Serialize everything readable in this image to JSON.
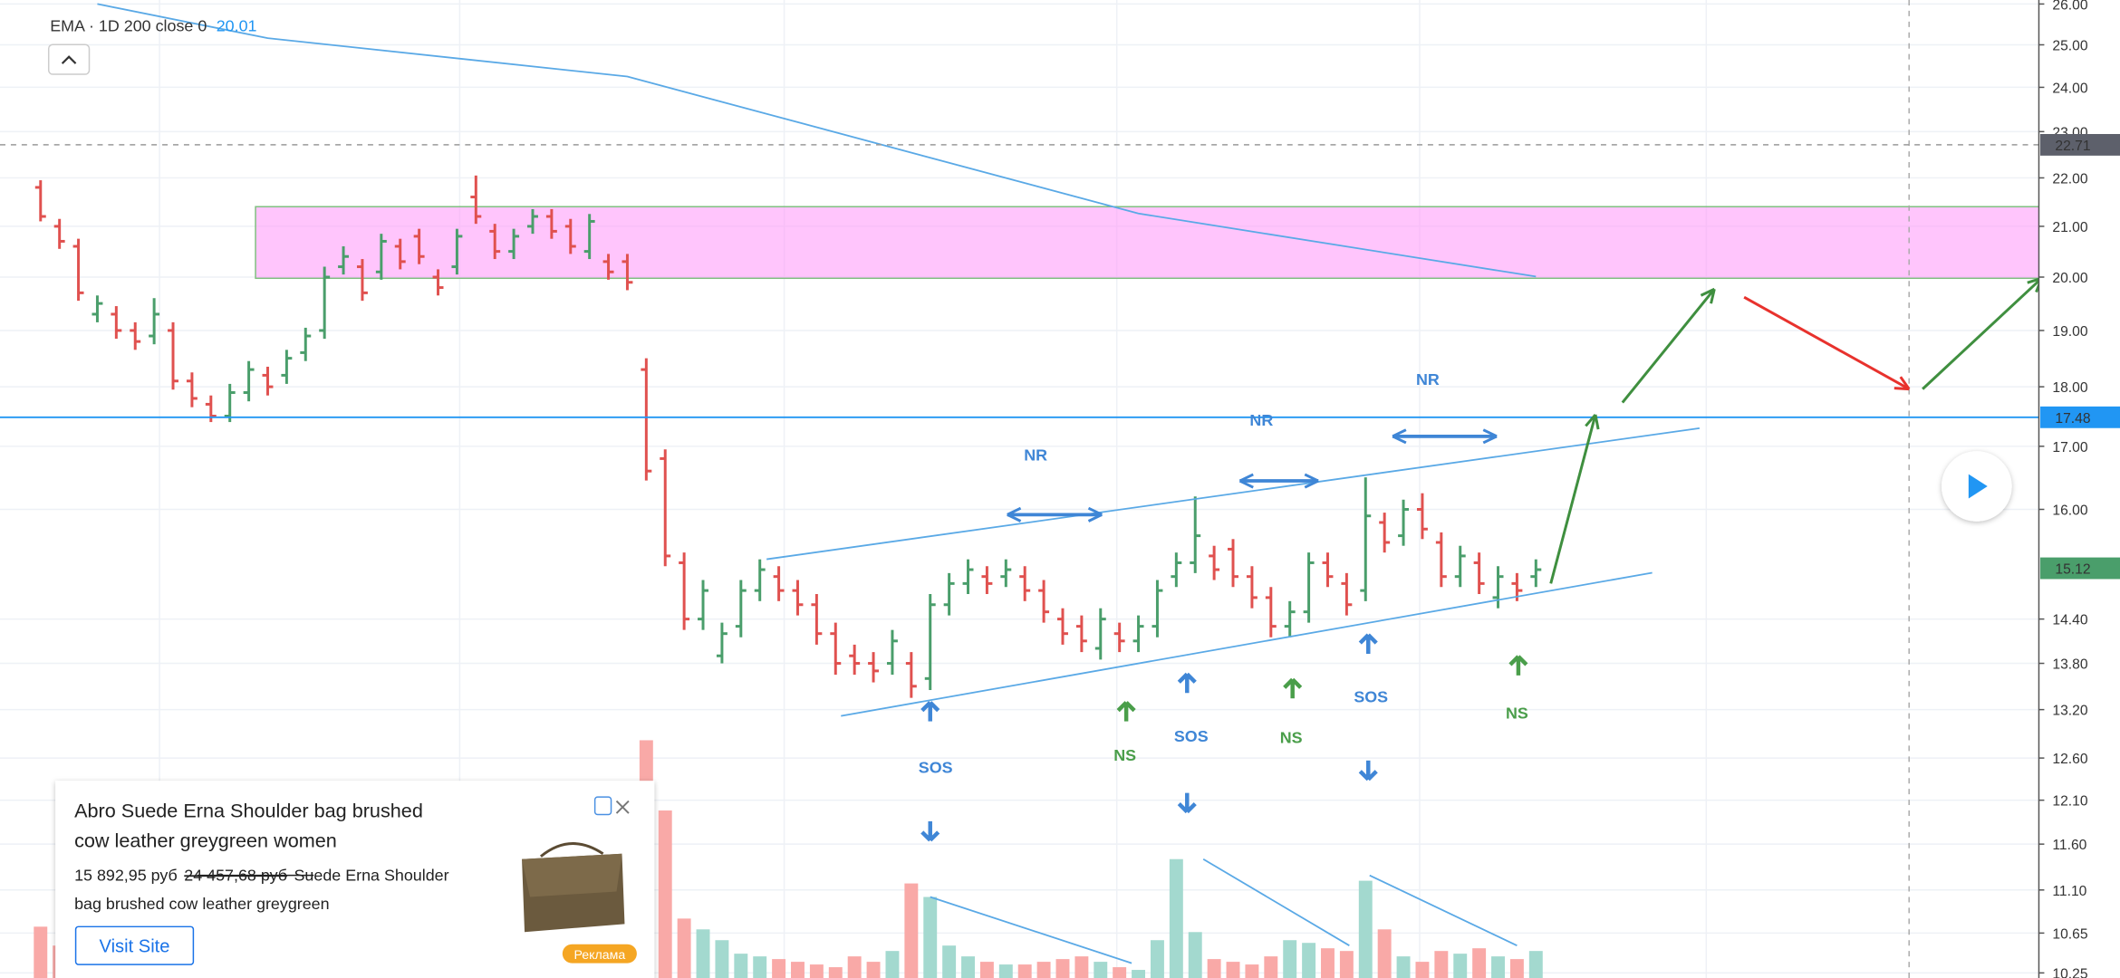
{
  "chart_data": {
    "type": "ohlc",
    "log_scale": true,
    "grid": true,
    "ylim": [
      10.2,
      26.1
    ],
    "yticks": [
      {
        "value": 26,
        "label": "26.00"
      },
      {
        "value": 25,
        "label": "25.00"
      },
      {
        "value": 24,
        "label": "24.00"
      },
      {
        "value": 23,
        "label": "23.00"
      },
      {
        "value": 22,
        "label": "22.00"
      },
      {
        "value": 21,
        "label": "21.00"
      },
      {
        "value": 20,
        "label": "20.00"
      },
      {
        "value": 19,
        "label": "19.00"
      },
      {
        "value": 18,
        "label": "18.00"
      },
      {
        "value": 17,
        "label": "17.00"
      },
      {
        "value": 16,
        "label": "16.00"
      },
      {
        "value": 14.4,
        "label": "14.40"
      },
      {
        "value": 13.8,
        "label": "13.80"
      },
      {
        "value": 13.2,
        "label": "13.20"
      },
      {
        "value": 12.6,
        "label": "12.60"
      },
      {
        "value": 12.1,
        "label": "12.10"
      },
      {
        "value": 11.6,
        "label": "11.60"
      },
      {
        "value": 11.1,
        "label": "11.10"
      },
      {
        "value": 10.65,
        "label": "10.65"
      },
      {
        "value": 10.25,
        "label": "10.25"
      }
    ],
    "up_color": "#4a9e6b",
    "down_color": "#e0514f",
    "volume_up_color": "#a3d9cf",
    "volume_down_color": "#f9a9a7",
    "ohlc": [
      [
        21.8,
        21.95,
        21.1,
        21.2
      ],
      [
        21.0,
        21.15,
        20.55,
        20.7
      ],
      [
        20.6,
        20.75,
        19.55,
        19.7
      ],
      [
        19.3,
        19.65,
        19.15,
        19.5
      ],
      [
        19.3,
        19.45,
        18.85,
        19.0
      ],
      [
        19.0,
        19.15,
        18.65,
        18.8
      ],
      [
        18.9,
        19.6,
        18.75,
        19.3
      ],
      [
        19.0,
        19.15,
        17.95,
        18.1
      ],
      [
        18.1,
        18.25,
        17.65,
        17.8
      ],
      [
        17.7,
        17.85,
        17.4,
        17.5
      ],
      [
        17.5,
        18.05,
        17.4,
        17.9
      ],
      [
        17.9,
        18.45,
        17.75,
        18.3
      ],
      [
        18.2,
        18.35,
        17.85,
        18.0
      ],
      [
        18.2,
        18.65,
        18.05,
        18.5
      ],
      [
        18.6,
        19.05,
        18.45,
        18.9
      ],
      [
        19.0,
        20.2,
        18.85,
        20.0
      ],
      [
        20.2,
        20.6,
        20.05,
        20.4
      ],
      [
        20.2,
        20.35,
        19.55,
        19.7
      ],
      [
        20.1,
        20.85,
        19.95,
        20.7
      ],
      [
        20.6,
        20.75,
        20.15,
        20.3
      ],
      [
        20.8,
        20.95,
        20.25,
        20.4
      ],
      [
        20.0,
        20.15,
        19.65,
        19.8
      ],
      [
        20.2,
        20.95,
        20.05,
        20.8
      ],
      [
        21.6,
        22.05,
        21.05,
        21.2
      ],
      [
        20.9,
        21.05,
        20.35,
        20.5
      ],
      [
        20.5,
        20.95,
        20.35,
        20.8
      ],
      [
        21.0,
        21.35,
        20.85,
        21.2
      ],
      [
        21.2,
        21.35,
        20.75,
        20.9
      ],
      [
        21.0,
        21.15,
        20.45,
        20.6
      ],
      [
        20.5,
        21.25,
        20.35,
        21.1
      ],
      [
        20.3,
        20.45,
        19.95,
        20.1
      ],
      [
        20.3,
        20.45,
        19.75,
        19.9
      ],
      [
        18.3,
        18.5,
        16.45,
        16.6
      ],
      [
        16.8,
        16.95,
        15.15,
        15.3
      ],
      [
        15.2,
        15.35,
        14.25,
        14.4
      ],
      [
        14.4,
        14.95,
        14.25,
        14.8
      ],
      [
        13.9,
        14.35,
        13.8,
        14.2
      ],
      [
        14.3,
        14.95,
        14.15,
        14.8
      ],
      [
        14.8,
        15.25,
        14.65,
        15.1
      ],
      [
        15.0,
        15.15,
        14.65,
        14.8
      ],
      [
        14.8,
        14.95,
        14.45,
        14.6
      ],
      [
        14.6,
        14.75,
        14.05,
        14.2
      ],
      [
        14.2,
        14.35,
        13.65,
        13.8
      ],
      [
        13.9,
        14.05,
        13.65,
        13.8
      ],
      [
        13.8,
        13.95,
        13.55,
        13.7
      ],
      [
        13.8,
        14.25,
        13.65,
        14.1
      ],
      [
        13.8,
        13.95,
        13.35,
        13.5
      ],
      [
        13.6,
        14.75,
        13.45,
        14.6
      ],
      [
        14.6,
        15.05,
        14.45,
        14.9
      ],
      [
        14.9,
        15.25,
        14.75,
        15.1
      ],
      [
        15.0,
        15.15,
        14.75,
        14.9
      ],
      [
        15.0,
        15.25,
        14.85,
        15.1
      ],
      [
        15.0,
        15.15,
        14.65,
        14.8
      ],
      [
        14.8,
        14.95,
        14.35,
        14.5
      ],
      [
        14.4,
        14.55,
        14.05,
        14.2
      ],
      [
        14.3,
        14.45,
        13.95,
        14.1
      ],
      [
        14.0,
        14.55,
        13.85,
        14.4
      ],
      [
        14.2,
        14.35,
        13.95,
        14.1
      ],
      [
        14.1,
        14.45,
        13.95,
        14.3
      ],
      [
        14.3,
        14.95,
        14.15,
        14.8
      ],
      [
        15.0,
        15.35,
        14.85,
        15.2
      ],
      [
        15.2,
        16.2,
        15.05,
        15.6
      ],
      [
        15.3,
        15.45,
        14.95,
        15.1
      ],
      [
        15.4,
        15.55,
        14.85,
        15.0
      ],
      [
        15.0,
        15.15,
        14.55,
        14.7
      ],
      [
        14.7,
        14.85,
        14.15,
        14.3
      ],
      [
        14.3,
        14.65,
        14.15,
        14.5
      ],
      [
        14.5,
        15.35,
        14.35,
        15.2
      ],
      [
        15.2,
        15.35,
        14.85,
        15.0
      ],
      [
        14.9,
        15.05,
        14.45,
        14.6
      ],
      [
        14.8,
        16.5,
        14.65,
        15.9
      ],
      [
        15.8,
        15.95,
        15.35,
        15.5
      ],
      [
        15.6,
        16.15,
        15.45,
        16.0
      ],
      [
        16.0,
        16.25,
        15.55,
        15.7
      ],
      [
        15.5,
        15.65,
        14.85,
        15.0
      ],
      [
        15.0,
        15.45,
        14.85,
        15.3
      ],
      [
        15.2,
        15.35,
        14.75,
        14.9
      ],
      [
        14.7,
        15.15,
        14.55,
        15.0
      ],
      [
        14.9,
        15.05,
        14.65,
        14.8
      ],
      [
        15.0,
        15.25,
        14.85,
        15.1
      ]
    ],
    "volume_ylim": [
      0,
      100
    ],
    "volume": [
      19,
      12,
      14,
      10,
      11,
      9,
      12,
      15,
      13,
      10,
      16,
      14,
      11,
      12,
      13,
      18,
      14,
      12,
      13,
      11,
      10,
      12,
      15,
      16,
      13,
      11,
      12,
      10,
      11,
      12,
      14,
      18,
      88,
      62,
      22,
      18,
      14,
      9,
      8,
      7,
      6,
      5,
      4,
      8,
      6,
      10,
      35,
      30,
      12,
      8,
      6,
      5,
      5,
      6,
      7,
      8,
      6,
      4,
      3,
      14,
      44,
      17,
      7,
      6,
      5,
      8,
      14,
      13,
      11,
      10,
      36,
      18,
      8,
      6,
      10,
      9,
      11,
      8,
      7,
      10
    ],
    "ema": {
      "name": "EMA · 1D 200 close 0",
      "color": "#5aa9e6",
      "x": [
        3,
        12,
        31,
        58,
        79
      ],
      "values": [
        26,
        25.16,
        24.25,
        21.26,
        20.01
      ]
    },
    "price_labels": [
      {
        "value": 22.71,
        "color": "#5d606b"
      },
      {
        "value": 17.48,
        "color": "#2196f3"
      },
      {
        "value": 15.12,
        "color": "#4a9e6b"
      }
    ],
    "annotations": [
      "NR",
      "NR",
      "NR",
      "SOS",
      "SOS",
      "SOS",
      "NS",
      "NS",
      "NS"
    ]
  },
  "ad": {
    "title_lines": [
      "Abro Suede Erna Shoulder bag brushed",
      "cow leather greygreen women"
    ],
    "price": "15 892,95 руб",
    "old_price": "24 457,68 руб",
    "description_lines": [
      "Suede Erna Shoulder",
      "bag brushed cow leather greygreen"
    ],
    "button": "Visit Site",
    "badge": "Реклама"
  }
}
